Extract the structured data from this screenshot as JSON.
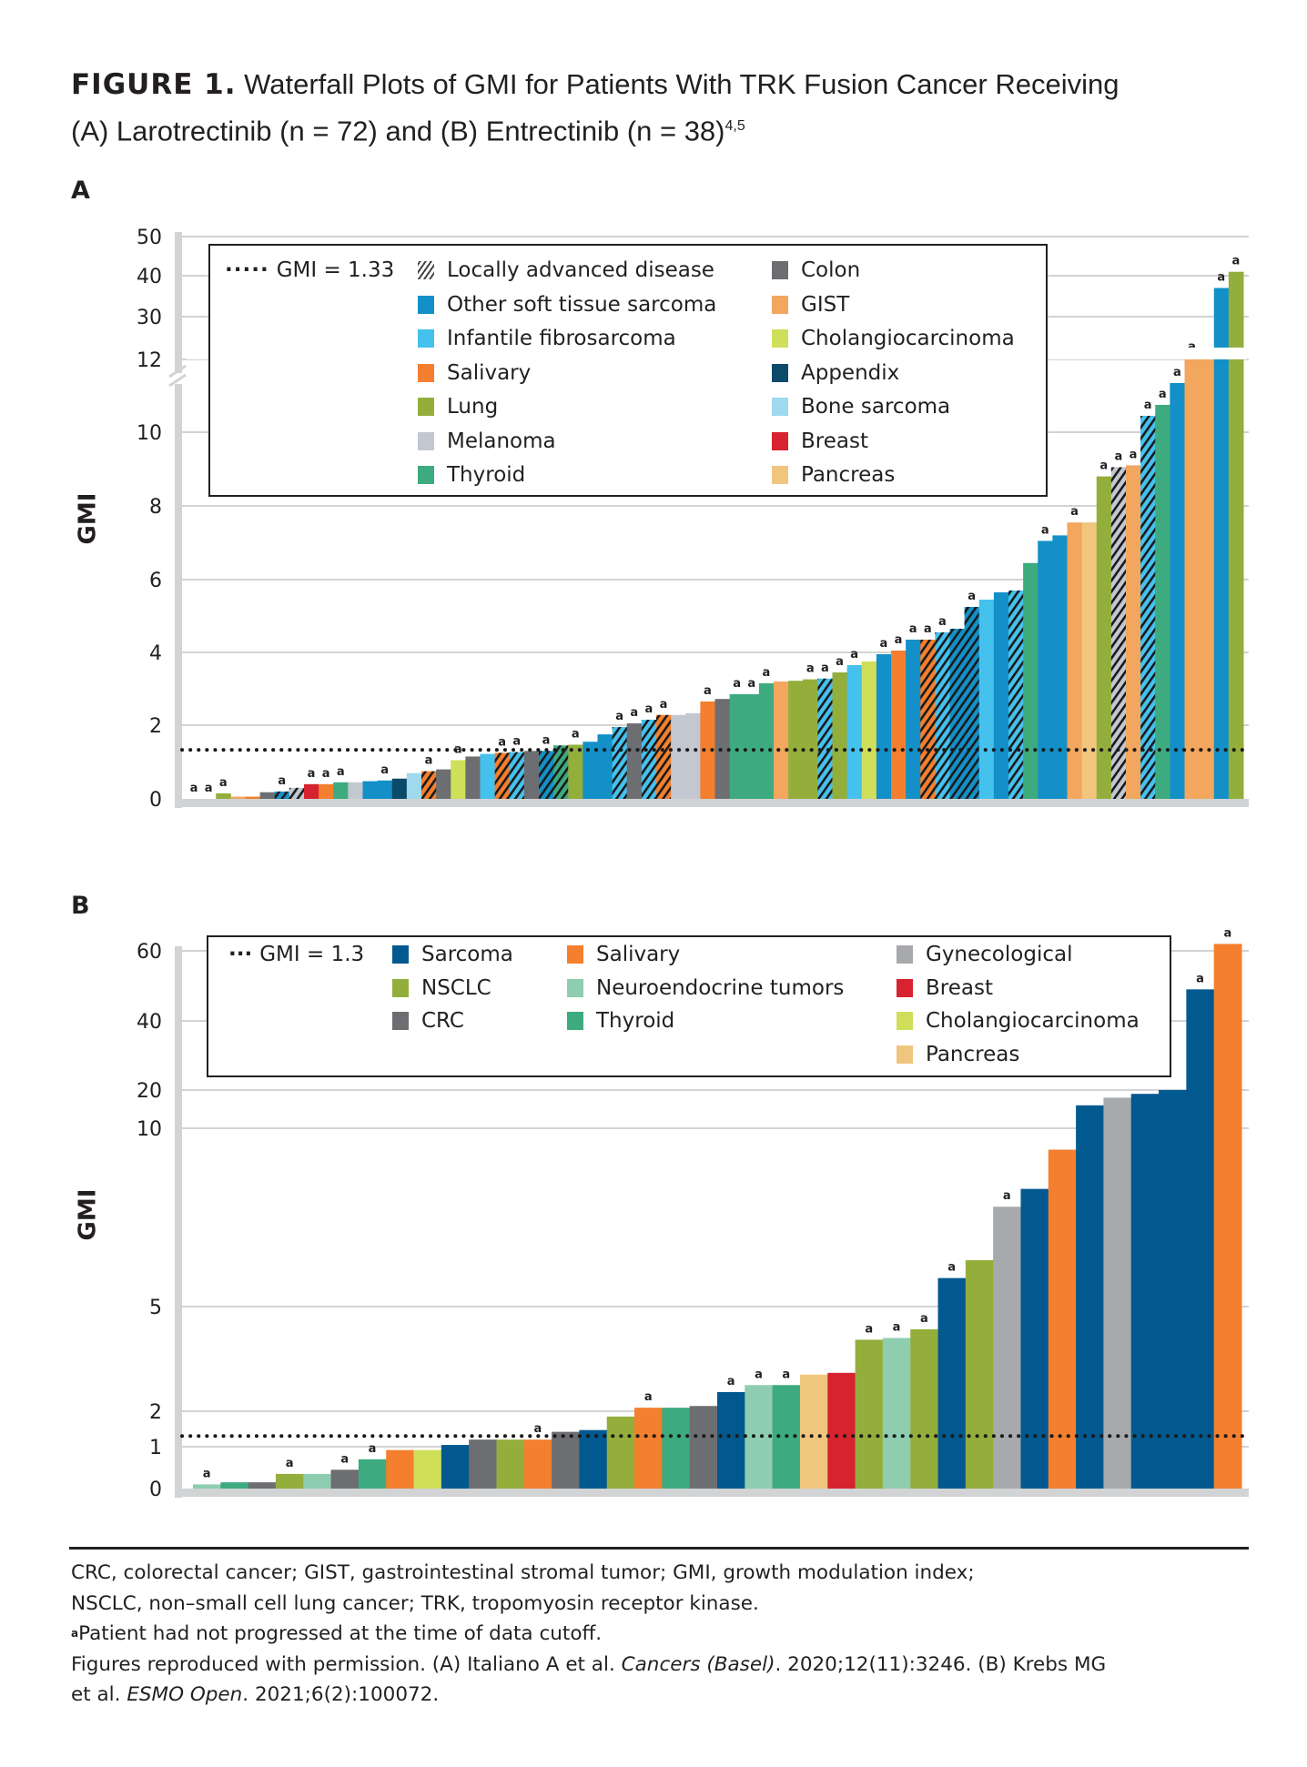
{
  "title": {
    "label": "FIGURE 1.",
    "line1": "Waterfall Plots of GMI for Patients With TRK Fusion Cancer Receiving",
    "line2": "(A) Larotrectinib (n = 72) and (B) Entrectinib (n = 38)",
    "line2_sup": "4,5"
  },
  "colors": {
    "other_soft_tissue_sarcoma": "#1390c7",
    "infantile_fibrosarcoma": "#45c1ee",
    "salivary": "#f47f2e",
    "lung": "#94ae3c",
    "melanoma": "#c2c7d0",
    "thyroid": "#3dab7f",
    "colon": "#6d6e71",
    "gist": "#f2a65e",
    "cholangiocarcinoma": "#cfdf5a",
    "appendix": "#0c4a6a",
    "bone_sarcoma": "#9ed9ee",
    "breast": "#d6232f",
    "pancreas": "#f0c67e",
    "sarcoma": "#02598f",
    "nsclc": "#94ae3c",
    "crc": "#6d6e71",
    "neuroendocrine": "#8ecdb0",
    "gynecological": "#a7a9ac",
    "grid": "#d1d3d4",
    "axis": "#d1d3d4"
  },
  "chart_data": [
    {
      "id": "A",
      "type": "bar",
      "panel_label": "A",
      "title": "Waterfall plot of GMI, Larotrectinib (n = 72)",
      "xlabel": "",
      "ylabel": "GMI",
      "y_ticks": [
        "0",
        "2",
        "4",
        "6",
        "8",
        "10",
        "12",
        "30",
        "40",
        "50"
      ],
      "y_tick_values": [
        0,
        2,
        4,
        6,
        8,
        10,
        12,
        30,
        40,
        50
      ],
      "axis_break": [
        12,
        13
      ],
      "ylim": [
        0,
        50
      ],
      "grid": true,
      "reference_line": {
        "label": "GMI = 1.33",
        "value": 1.33,
        "style": "dotted"
      },
      "legend": {
        "placement": "top-left",
        "items": [
          {
            "key": "gmi_line",
            "label": "GMI = 1.33",
            "kind": "dotted-line"
          },
          {
            "key": "hatched",
            "label": "Locally advanced disease",
            "kind": "hatch"
          },
          {
            "key": "other_soft_tissue_sarcoma",
            "label": "Other soft tissue sarcoma",
            "kind": "swatch"
          },
          {
            "key": "infantile_fibrosarcoma",
            "label": "Infantile fibrosarcoma",
            "kind": "swatch"
          },
          {
            "key": "salivary",
            "label": "Salivary",
            "kind": "swatch"
          },
          {
            "key": "lung",
            "label": "Lung",
            "kind": "swatch"
          },
          {
            "key": "melanoma",
            "label": "Melanoma",
            "kind": "swatch"
          },
          {
            "key": "thyroid",
            "label": "Thyroid",
            "kind": "swatch"
          },
          {
            "key": "colon",
            "label": "Colon",
            "kind": "swatch"
          },
          {
            "key": "gist",
            "label": "GIST",
            "kind": "swatch"
          },
          {
            "key": "cholangiocarcinoma",
            "label": "Cholangiocarcinoma",
            "kind": "swatch"
          },
          {
            "key": "appendix",
            "label": "Appendix",
            "kind": "swatch"
          },
          {
            "key": "bone_sarcoma",
            "label": "Bone sarcoma",
            "kind": "swatch"
          },
          {
            "key": "breast",
            "label": "Breast",
            "kind": "swatch"
          },
          {
            "key": "pancreas",
            "label": "Pancreas",
            "kind": "swatch"
          }
        ]
      },
      "bars": [
        {
          "cat": "other_soft_tissue_sarcoma",
          "value": 0,
          "hatched": false,
          "a": true
        },
        {
          "cat": "other_soft_tissue_sarcoma",
          "value": 0,
          "hatched": false,
          "a": true
        },
        {
          "cat": "lung",
          "value": 0.15,
          "hatched": false,
          "a": true
        },
        {
          "cat": "gist",
          "value": 0.06,
          "hatched": false,
          "a": false
        },
        {
          "cat": "salivary",
          "value": 0.06,
          "hatched": false,
          "a": false
        },
        {
          "cat": "colon",
          "value": 0.18,
          "hatched": false,
          "a": false
        },
        {
          "cat": "other_soft_tissue_sarcoma",
          "value": 0.2,
          "hatched": true,
          "a": true
        },
        {
          "cat": "melanoma",
          "value": 0.3,
          "hatched": true,
          "a": false
        },
        {
          "cat": "breast",
          "value": 0.4,
          "hatched": false,
          "a": true
        },
        {
          "cat": "salivary",
          "value": 0.4,
          "hatched": false,
          "a": true
        },
        {
          "cat": "thyroid",
          "value": 0.45,
          "hatched": false,
          "a": true
        },
        {
          "cat": "melanoma",
          "value": 0.45,
          "hatched": false,
          "a": false
        },
        {
          "cat": "other_soft_tissue_sarcoma",
          "value": 0.48,
          "hatched": false,
          "a": false
        },
        {
          "cat": "other_soft_tissue_sarcoma",
          "value": 0.5,
          "hatched": false,
          "a": true
        },
        {
          "cat": "appendix",
          "value": 0.55,
          "hatched": false,
          "a": false
        },
        {
          "cat": "bone_sarcoma",
          "value": 0.7,
          "hatched": false,
          "a": false
        },
        {
          "cat": "salivary",
          "value": 0.75,
          "hatched": true,
          "a": true
        },
        {
          "cat": "colon",
          "value": 0.8,
          "hatched": false,
          "a": false
        },
        {
          "cat": "cholangiocarcinoma",
          "value": 1.05,
          "hatched": false,
          "a": true
        },
        {
          "cat": "colon",
          "value": 1.15,
          "hatched": false,
          "a": false
        },
        {
          "cat": "infantile_fibrosarcoma",
          "value": 1.22,
          "hatched": false,
          "a": false
        },
        {
          "cat": "salivary",
          "value": 1.25,
          "hatched": true,
          "a": true
        },
        {
          "cat": "infantile_fibrosarcoma",
          "value": 1.27,
          "hatched": true,
          "a": true
        },
        {
          "cat": "colon",
          "value": 1.3,
          "hatched": false,
          "a": false
        },
        {
          "cat": "other_soft_tissue_sarcoma",
          "value": 1.3,
          "hatched": true,
          "a": true
        },
        {
          "cat": "thyroid",
          "value": 1.45,
          "hatched": true,
          "a": false
        },
        {
          "cat": "lung",
          "value": 1.47,
          "hatched": false,
          "a": true
        },
        {
          "cat": "other_soft_tissue_sarcoma",
          "value": 1.55,
          "hatched": false,
          "a": false
        },
        {
          "cat": "other_soft_tissue_sarcoma",
          "value": 1.75,
          "hatched": false,
          "a": false
        },
        {
          "cat": "infantile_fibrosarcoma",
          "value": 1.95,
          "hatched": true,
          "a": true
        },
        {
          "cat": "colon",
          "value": 2.05,
          "hatched": false,
          "a": true
        },
        {
          "cat": "infantile_fibrosarcoma",
          "value": 2.15,
          "hatched": true,
          "a": true
        },
        {
          "cat": "salivary",
          "value": 2.28,
          "hatched": true,
          "a": true
        },
        {
          "cat": "melanoma",
          "value": 2.28,
          "hatched": false,
          "a": false
        },
        {
          "cat": "melanoma",
          "value": 2.33,
          "hatched": false,
          "a": false
        },
        {
          "cat": "salivary",
          "value": 2.65,
          "hatched": false,
          "a": true
        },
        {
          "cat": "colon",
          "value": 2.72,
          "hatched": false,
          "a": false
        },
        {
          "cat": "thyroid",
          "value": 2.85,
          "hatched": false,
          "a": true
        },
        {
          "cat": "thyroid",
          "value": 2.85,
          "hatched": false,
          "a": true
        },
        {
          "cat": "thyroid",
          "value": 3.15,
          "hatched": false,
          "a": true
        },
        {
          "cat": "gist",
          "value": 3.2,
          "hatched": false,
          "a": false
        },
        {
          "cat": "lung",
          "value": 3.22,
          "hatched": false,
          "a": false
        },
        {
          "cat": "lung",
          "value": 3.26,
          "hatched": false,
          "a": true
        },
        {
          "cat": "infantile_fibrosarcoma",
          "value": 3.28,
          "hatched": true,
          "a": true
        },
        {
          "cat": "lung",
          "value": 3.45,
          "hatched": false,
          "a": true
        },
        {
          "cat": "infantile_fibrosarcoma",
          "value": 3.65,
          "hatched": false,
          "a": true
        },
        {
          "cat": "cholangiocarcinoma",
          "value": 3.75,
          "hatched": false,
          "a": false
        },
        {
          "cat": "other_soft_tissue_sarcoma",
          "value": 3.95,
          "hatched": false,
          "a": true
        },
        {
          "cat": "salivary",
          "value": 4.05,
          "hatched": false,
          "a": true
        },
        {
          "cat": "other_soft_tissue_sarcoma",
          "value": 4.35,
          "hatched": false,
          "a": true
        },
        {
          "cat": "salivary",
          "value": 4.35,
          "hatched": true,
          "a": true
        },
        {
          "cat": "infantile_fibrosarcoma",
          "value": 4.55,
          "hatched": true,
          "a": true
        },
        {
          "cat": "other_soft_tissue_sarcoma",
          "value": 4.65,
          "hatched": true,
          "a": false
        },
        {
          "cat": "other_soft_tissue_sarcoma",
          "value": 5.25,
          "hatched": true,
          "a": true
        },
        {
          "cat": "infantile_fibrosarcoma",
          "value": 5.45,
          "hatched": false,
          "a": false
        },
        {
          "cat": "other_soft_tissue_sarcoma",
          "value": 5.65,
          "hatched": false,
          "a": false
        },
        {
          "cat": "infantile_fibrosarcoma",
          "value": 5.7,
          "hatched": true,
          "a": false
        },
        {
          "cat": "thyroid",
          "value": 6.45,
          "hatched": false,
          "a": false
        },
        {
          "cat": "other_soft_tissue_sarcoma",
          "value": 7.05,
          "hatched": false,
          "a": true
        },
        {
          "cat": "other_soft_tissue_sarcoma",
          "value": 7.2,
          "hatched": false,
          "a": false
        },
        {
          "cat": "gist",
          "value": 7.55,
          "hatched": false,
          "a": true
        },
        {
          "cat": "pancreas",
          "value": 7.55,
          "hatched": false,
          "a": false
        },
        {
          "cat": "lung",
          "value": 8.8,
          "hatched": false,
          "a": true
        },
        {
          "cat": "melanoma",
          "value": 9.05,
          "hatched": true,
          "a": true
        },
        {
          "cat": "gist",
          "value": 9.1,
          "hatched": false,
          "a": true
        },
        {
          "cat": "infantile_fibrosarcoma",
          "value": 10.45,
          "hatched": true,
          "a": true
        },
        {
          "cat": "thyroid",
          "value": 10.75,
          "hatched": false,
          "a": true
        },
        {
          "cat": "other_soft_tissue_sarcoma",
          "value": 11.35,
          "hatched": false,
          "a": true
        },
        {
          "cat": "gist",
          "value": 13.5,
          "hatched": false,
          "a": true
        },
        {
          "cat": "gist",
          "value": 15,
          "hatched": false,
          "a": false
        },
        {
          "cat": "other_soft_tissue_sarcoma",
          "value": 37,
          "hatched": false,
          "a": true
        },
        {
          "cat": "lung",
          "value": 41,
          "hatched": false,
          "a": true
        }
      ]
    },
    {
      "id": "B",
      "type": "bar",
      "panel_label": "B",
      "title": "Waterfall plot of GMI, Entrectinib (n = 38)",
      "xlabel": "",
      "ylabel": "GMI",
      "y_ticks": [
        "0",
        "1",
        "2",
        "5",
        "10",
        "20",
        "40",
        "60"
      ],
      "y_tick_values": [
        0,
        1,
        2,
        5,
        10,
        20,
        40,
        60
      ],
      "ylim": [
        0,
        60
      ],
      "grid": true,
      "reference_line": {
        "label": "GMI = 1.3",
        "value": 1.3,
        "style": "dotted"
      },
      "legend": {
        "placement": "top-left",
        "items": [
          {
            "key": "gmi_line",
            "label": "GMI = 1.3",
            "kind": "dotted-line"
          },
          {
            "key": "sarcoma",
            "label": "Sarcoma",
            "kind": "swatch"
          },
          {
            "key": "nsclc",
            "label": "NSCLC",
            "kind": "swatch"
          },
          {
            "key": "crc",
            "label": "CRC",
            "kind": "swatch"
          },
          {
            "key": "salivary",
            "label": "Salivary",
            "kind": "swatch"
          },
          {
            "key": "neuroendocrine",
            "label": "Neuroendocrine tumors",
            "kind": "swatch"
          },
          {
            "key": "thyroid",
            "label": "Thyroid",
            "kind": "swatch"
          },
          {
            "key": "gynecological",
            "label": "Gynecological",
            "kind": "swatch"
          },
          {
            "key": "breast",
            "label": "Breast",
            "kind": "swatch"
          },
          {
            "key": "cholangiocarcinoma",
            "label": "Cholangiocarcinoma",
            "kind": "swatch"
          },
          {
            "key": "pancreas",
            "label": "Pancreas",
            "kind": "swatch"
          }
        ]
      },
      "bars": [
        {
          "cat": "neuroendocrine",
          "value": 0.1,
          "a": true
        },
        {
          "cat": "thyroid",
          "value": 0.15,
          "a": false
        },
        {
          "cat": "crc",
          "value": 0.15,
          "a": false
        },
        {
          "cat": "nsclc",
          "value": 0.35,
          "a": true
        },
        {
          "cat": "neuroendocrine",
          "value": 0.35,
          "a": false
        },
        {
          "cat": "crc",
          "value": 0.45,
          "a": true
        },
        {
          "cat": "thyroid",
          "value": 0.7,
          "a": true
        },
        {
          "cat": "salivary",
          "value": 0.92,
          "a": false
        },
        {
          "cat": "cholangiocarcinoma",
          "value": 0.92,
          "a": false
        },
        {
          "cat": "sarcoma",
          "value": 1.05,
          "a": false
        },
        {
          "cat": "crc",
          "value": 1.2,
          "a": false
        },
        {
          "cat": "nsclc",
          "value": 1.2,
          "a": false
        },
        {
          "cat": "salivary",
          "value": 1.2,
          "a": true
        },
        {
          "cat": "crc",
          "value": 1.42,
          "a": false
        },
        {
          "cat": "sarcoma",
          "value": 1.47,
          "a": false
        },
        {
          "cat": "nsclc",
          "value": 1.85,
          "a": false
        },
        {
          "cat": "salivary",
          "value": 2.1,
          "a": true
        },
        {
          "cat": "thyroid",
          "value": 2.1,
          "a": false
        },
        {
          "cat": "crc",
          "value": 2.15,
          "a": false
        },
        {
          "cat": "sarcoma",
          "value": 2.55,
          "a": true
        },
        {
          "cat": "neuroendocrine",
          "value": 2.75,
          "a": true
        },
        {
          "cat": "thyroid",
          "value": 2.75,
          "a": true
        },
        {
          "cat": "pancreas",
          "value": 3.05,
          "a": false
        },
        {
          "cat": "breast",
          "value": 3.1,
          "a": false
        },
        {
          "cat": "nsclc",
          "value": 4.05,
          "a": true
        },
        {
          "cat": "neuroendocrine",
          "value": 4.1,
          "a": true
        },
        {
          "cat": "nsclc",
          "value": 4.35,
          "a": true
        },
        {
          "cat": "sarcoma",
          "value": 5.8,
          "a": true
        },
        {
          "cat": "nsclc",
          "value": 6.3,
          "a": false
        },
        {
          "cat": "gynecological",
          "value": 7.8,
          "a": true
        },
        {
          "cat": "sarcoma",
          "value": 8.3,
          "a": false
        },
        {
          "cat": "salivary",
          "value": 9.4,
          "a": false
        },
        {
          "cat": "sarcoma",
          "value": 16,
          "a": false
        },
        {
          "cat": "gynecological",
          "value": 18,
          "a": false
        },
        {
          "cat": "sarcoma",
          "value": 19,
          "a": false
        },
        {
          "cat": "sarcoma",
          "value": 20,
          "a": false
        },
        {
          "cat": "sarcoma",
          "value": 49,
          "a": true
        },
        {
          "cat": "salivary",
          "value": 62,
          "a": true
        }
      ]
    }
  ],
  "panels": {
    "a_label": "A",
    "b_label": "B",
    "ylabel": "GMI",
    "a_marker": "a"
  },
  "footnotes": {
    "abbrev1": "CRC, colorectal cancer; GIST, gastrointestinal stromal tumor; GMI, growth modulation index;",
    "abbrev2": "NSCLC, non–small cell lung cancer; TRK, tropomyosin receptor kinase.",
    "a_sup": "a",
    "a_note": "Patient had not progressed at the time of data cutoff.",
    "cite_pre": "Figures reproduced with permission. (A) Italiano A et al. ",
    "cite_journal_a": "Cancers (Basel)",
    "cite_mid": ". 2020;12(11):3246. (B) Krebs MG",
    "cite_line2_pre": "et al. ",
    "cite_journal_b": "ESMO Open",
    "cite_end": ". 2021;6(2):100072."
  }
}
